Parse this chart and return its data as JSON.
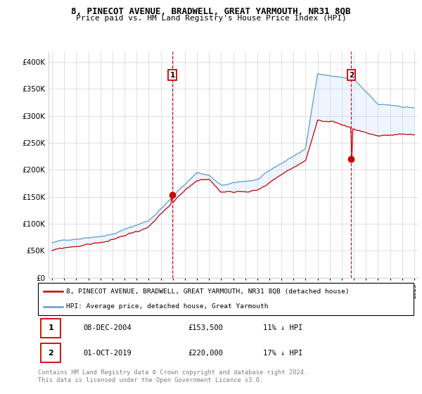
{
  "title1": "8, PINECOT AVENUE, BRADWELL, GREAT YARMOUTH, NR31 8QB",
  "title2": "Price paid vs. HM Land Registry's House Price Index (HPI)",
  "sale1_label": "08-DEC-2004",
  "sale1_price": 153500,
  "sale1_pct": "11%",
  "sale2_label": "01-OCT-2019",
  "sale2_price": 220000,
  "sale2_pct": "17%",
  "line_color_property": "#cc0000",
  "line_color_hpi": "#6699cc",
  "fill_color_hpi": "#ddeeff",
  "vline_color": "#cc0000",
  "marker_box_color": "#cc0000",
  "legend_label_property": "8, PINECOT AVENUE, BRADWELL, GREAT YARMOUTH, NR31 8QB (detached house)",
  "legend_label_hpi": "HPI: Average price, detached house, Great Yarmouth",
  "footer": "Contains HM Land Registry data © Crown copyright and database right 2024.\nThis data is licensed under the Open Government Licence v3.0.",
  "ylim": [
    0,
    420000
  ],
  "yticks": [
    0,
    50000,
    100000,
    150000,
    200000,
    250000,
    300000,
    350000,
    400000
  ],
  "year_start": 1995,
  "year_end": 2025
}
